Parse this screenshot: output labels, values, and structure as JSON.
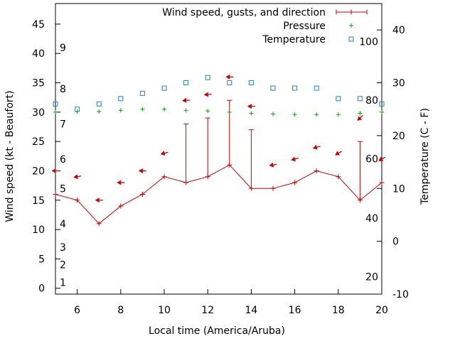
{
  "chart_data": {
    "type": "line",
    "title": "",
    "xlabel": "Local time (America/Aruba)",
    "ylabel": "Wind speed (kt - Beaufort)",
    "y2label": "Temperature (C - F)",
    "xlim": [
      5,
      20
    ],
    "ylim": [
      -1,
      48.5
    ],
    "y2lim": [
      -10,
      45
    ],
    "grid": false,
    "legend_position": "top-right",
    "x_ticks": [
      6,
      8,
      10,
      12,
      14,
      16,
      18,
      20
    ],
    "y_ticks": [
      0,
      5,
      10,
      15,
      20,
      25,
      30,
      35,
      40,
      45
    ],
    "y2_ticks": [
      -10,
      0,
      10,
      20,
      30,
      40
    ],
    "beaufort_labels": [
      {
        "label": "1",
        "value": 1
      },
      {
        "label": "2",
        "value": 4
      },
      {
        "label": "3",
        "value": 7
      },
      {
        "label": "4",
        "value": 11
      },
      {
        "label": "5",
        "value": 17
      },
      {
        "label": "6",
        "value": 22
      },
      {
        "label": "7",
        "value": 28
      },
      {
        "label": "8",
        "value": 34
      },
      {
        "label": "9",
        "value": 41
      }
    ],
    "fahrenheit_labels": [
      {
        "label": "20",
        "value": -6.7
      },
      {
        "label": "40",
        "value": 4.4
      },
      {
        "label": "60",
        "value": 15.6
      },
      {
        "label": "80",
        "value": 26.7
      },
      {
        "label": "100",
        "value": 37.8
      }
    ],
    "legend": [
      {
        "name": "Wind speed, gusts, and direction",
        "color": "#cc0000",
        "symbol": "line-plus"
      },
      {
        "name": "Pressure",
        "color": "#00aa00",
        "symbol": "plus"
      },
      {
        "name": "Temperature",
        "color": "#1e7fd4",
        "symbol": "square"
      }
    ],
    "series": [
      {
        "name": "Wind speed, gusts, and direction",
        "x": [
          5,
          6,
          7,
          8,
          9,
          10,
          11,
          12,
          13,
          14,
          15,
          16,
          17,
          18,
          19,
          20
        ],
        "speed": [
          16,
          15,
          11,
          14,
          16,
          19,
          18,
          19,
          21,
          17,
          17,
          18,
          20,
          19,
          15,
          18
        ],
        "gust": [
          null,
          null,
          null,
          null,
          null,
          null,
          28,
          29,
          32,
          27,
          null,
          null,
          null,
          null,
          25,
          null
        ],
        "direction_arrow_y": [
          20,
          19,
          15,
          18,
          20,
          23,
          32,
          33,
          36,
          31,
          21,
          22,
          24,
          23,
          29,
          22
        ],
        "direction_from_deg": [
          90,
          80,
          90,
          90,
          90,
          75,
          85,
          85,
          90,
          90,
          80,
          75,
          75,
          60,
          45,
          60
        ]
      },
      {
        "name": "Pressure",
        "x": [
          5,
          6,
          7,
          8,
          9,
          10,
          11,
          12,
          13,
          14,
          15,
          16,
          17,
          18,
          19,
          20
        ],
        "y": [
          30,
          30.1,
          30.1,
          30.3,
          30.5,
          30.5,
          30.3,
          30.2,
          30,
          29.8,
          29.7,
          29.6,
          29.6,
          29.6,
          29.8,
          30
        ]
      },
      {
        "name": "Temperature",
        "x": [
          5,
          6,
          7,
          8,
          9,
          10,
          11,
          12,
          13,
          14,
          15,
          16,
          17,
          18,
          19,
          20
        ],
        "y": [
          26,
          25,
          26,
          27,
          28,
          29,
          30,
          31,
          30,
          30,
          29,
          29,
          29,
          27,
          27,
          26
        ]
      }
    ]
  }
}
